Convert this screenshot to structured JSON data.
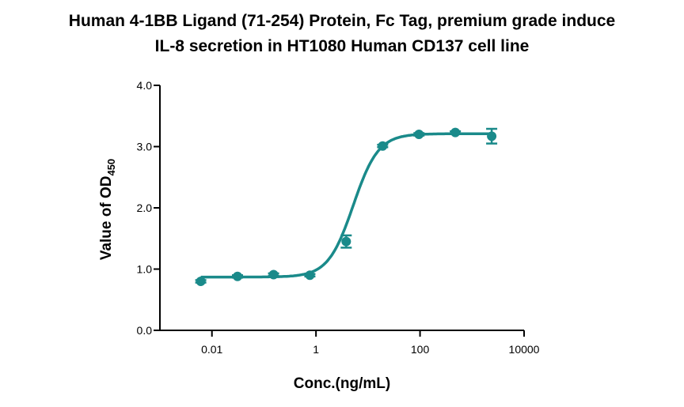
{
  "chart_data": {
    "type": "scatter",
    "title_line1": "Human 4-1BB Ligand (71-254) Protein, Fc Tag, premium grade induce",
    "title_line2": "IL-8 secretion in HT1080 Human CD137 cell line",
    "xlabel": "Conc.(ng/mL)",
    "ylabel_main": "Value of OD",
    "ylabel_sub": "450",
    "x_scale": "log",
    "xlim": [
      0.001,
      10000
    ],
    "ylim": [
      0,
      4.0
    ],
    "x_ticks": [
      0.01,
      1,
      100,
      10000
    ],
    "x_tick_labels": [
      "0.01",
      "1",
      "100",
      "10000"
    ],
    "y_ticks": [
      0,
      1,
      2,
      3,
      4
    ],
    "y_tick_labels": [
      "0.0",
      "1.0",
      "2.0",
      "3.0",
      "4.0"
    ],
    "grid": false,
    "color": "#1a8a8a",
    "points": [
      {
        "x": 0.0061,
        "y": 0.8,
        "err": 0.02
      },
      {
        "x": 0.031,
        "y": 0.88,
        "err": 0.02
      },
      {
        "x": 0.153,
        "y": 0.91,
        "err": 0.02
      },
      {
        "x": 0.763,
        "y": 0.9,
        "err": 0.02
      },
      {
        "x": 3.81,
        "y": 1.45,
        "err": 0.1
      },
      {
        "x": 19.1,
        "y": 3.01,
        "err": 0.02
      },
      {
        "x": 95.4,
        "y": 3.2,
        "err": 0.02
      },
      {
        "x": 477,
        "y": 3.23,
        "err": 0.02
      },
      {
        "x": 2384,
        "y": 3.17,
        "err": 0.12
      }
    ],
    "fit": {
      "bottom": 0.87,
      "top": 3.21,
      "ec50": 5.2,
      "hill": 1.8
    }
  }
}
